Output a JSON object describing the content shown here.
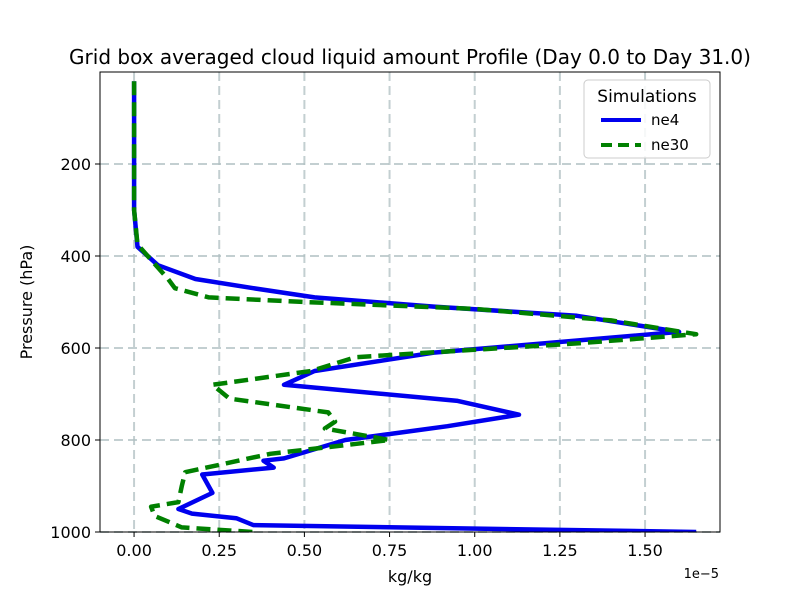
{
  "chart_data": {
    "type": "line",
    "title": "Grid box averaged cloud liquid amount Profile (Day 0.0 to Day 31.0)",
    "xlabel": "kg/kg",
    "ylabel": "Pressure (hPa)",
    "x_offset_label": "1e−5",
    "xlim": [
      -0.1,
      1.72
    ],
    "ylim": [
      1000,
      0
    ],
    "xticks": [
      0.0,
      0.25,
      0.5,
      0.75,
      1.0,
      1.25,
      1.5
    ],
    "xtick_labels": [
      "0.00",
      "0.25",
      "0.50",
      "0.75",
      "1.00",
      "1.25",
      "1.50"
    ],
    "yticks": [
      200,
      400,
      600,
      800,
      1000
    ],
    "ytick_labels": [
      "200",
      "400",
      "600",
      "800",
      "1000"
    ],
    "grid": true,
    "legend_title": "Simulations",
    "legend_position": "top-right",
    "series": [
      {
        "name": "ne4",
        "color": "#0000ee",
        "style": "solid",
        "x": [
          0,
          0,
          0,
          0,
          0.01,
          0.07,
          0.18,
          0.35,
          0.53,
          0.88,
          1.3,
          1.6,
          0.88,
          0.53,
          0.44,
          0.95,
          1.13,
          0.92,
          0.62,
          0.44,
          0.38,
          0.41,
          0.2,
          0.23,
          0.13,
          0.17,
          0.3,
          0.35,
          1.65
        ],
        "y": [
          20,
          100,
          200,
          300,
          380,
          420,
          450,
          470,
          490,
          510,
          530,
          565,
          610,
          650,
          680,
          715,
          745,
          770,
          800,
          840,
          845,
          860,
          875,
          915,
          950,
          960,
          970,
          985,
          1000
        ]
      },
      {
        "name": "ne30",
        "color": "#008000",
        "style": "dashed",
        "x": [
          0,
          0,
          0,
          0,
          0.01,
          0.1,
          0.12,
          0.22,
          0.5,
          1.0,
          1.4,
          1.65,
          1.3,
          0.65,
          0.52,
          0.23,
          0.28,
          0.57,
          0.59,
          0.56,
          0.75,
          0.4,
          0.15,
          0.14,
          0.13,
          0.05,
          0.06,
          0.14,
          0.35
        ],
        "y": [
          20,
          100,
          200,
          300,
          375,
          450,
          470,
          490,
          500,
          515,
          540,
          570,
          590,
          620,
          650,
          680,
          710,
          740,
          760,
          775,
          800,
          830,
          870,
          900,
          935,
          945,
          965,
          990,
          1000
        ]
      }
    ]
  }
}
